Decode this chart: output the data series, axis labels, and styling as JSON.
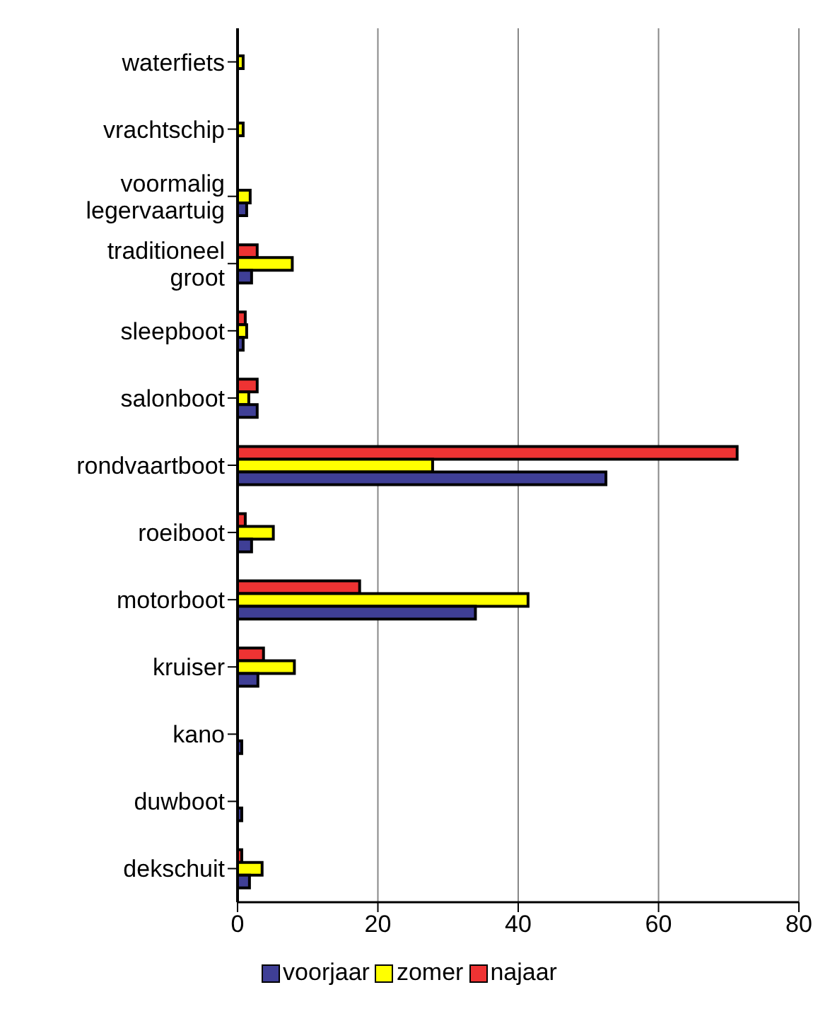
{
  "chart_data": {
    "type": "bar",
    "orientation": "horizontal",
    "categories": [
      "waterfiets",
      "vrachtschip",
      "voormalig legervaartuig",
      "traditioneel groot",
      "sleepboot",
      "salonboot",
      "rondvaartboot",
      "roeiboot",
      "motorboot",
      "kruiser",
      "kano",
      "duwboot",
      "dekschuit"
    ],
    "series": [
      {
        "name": "voorjaar",
        "color": "#3f3f96",
        "values": [
          null,
          null,
          1.3,
          2.0,
          0.8,
          2.8,
          52.5,
          2.0,
          33.9,
          2.9,
          0.6,
          0.6,
          1.7
        ]
      },
      {
        "name": "zomer",
        "color": "#ffff00",
        "values": [
          0.8,
          0.8,
          1.8,
          7.8,
          1.3,
          1.6,
          27.8,
          5.1,
          41.4,
          8.1,
          null,
          null,
          3.5
        ]
      },
      {
        "name": "najaar",
        "color": "#ee3333",
        "values": [
          null,
          null,
          null,
          2.8,
          1.1,
          2.8,
          71.2,
          1.1,
          17.4,
          3.7,
          null,
          null,
          0.6
        ]
      }
    ],
    "xlim": [
      0,
      80
    ],
    "xticks": [
      0,
      20,
      40,
      60,
      80
    ],
    "grid": "x",
    "legend": "bottom"
  }
}
